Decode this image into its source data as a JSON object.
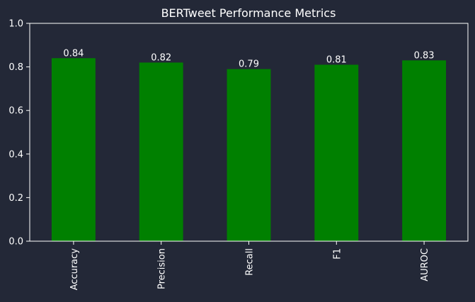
{
  "colors": {
    "background": "#232837",
    "axis": "#ffffff",
    "text": "#ffffff",
    "bar": "#008000"
  },
  "chart_data": {
    "type": "bar",
    "title": "BERTweet Performance Metrics",
    "xlabel": "",
    "ylabel": "",
    "categories": [
      "Accuracy",
      "Precision",
      "Recall",
      "F1",
      "AUROC"
    ],
    "values": [
      0.84,
      0.82,
      0.79,
      0.81,
      0.83
    ],
    "data_labels": [
      "0.84",
      "0.82",
      "0.79",
      "0.81",
      "0.83"
    ],
    "ylim": [
      0,
      1.0
    ],
    "yticks": [
      "0.0",
      "0.2",
      "0.4",
      "0.6",
      "0.8",
      "1.0"
    ],
    "grid": false,
    "legend": "none"
  }
}
